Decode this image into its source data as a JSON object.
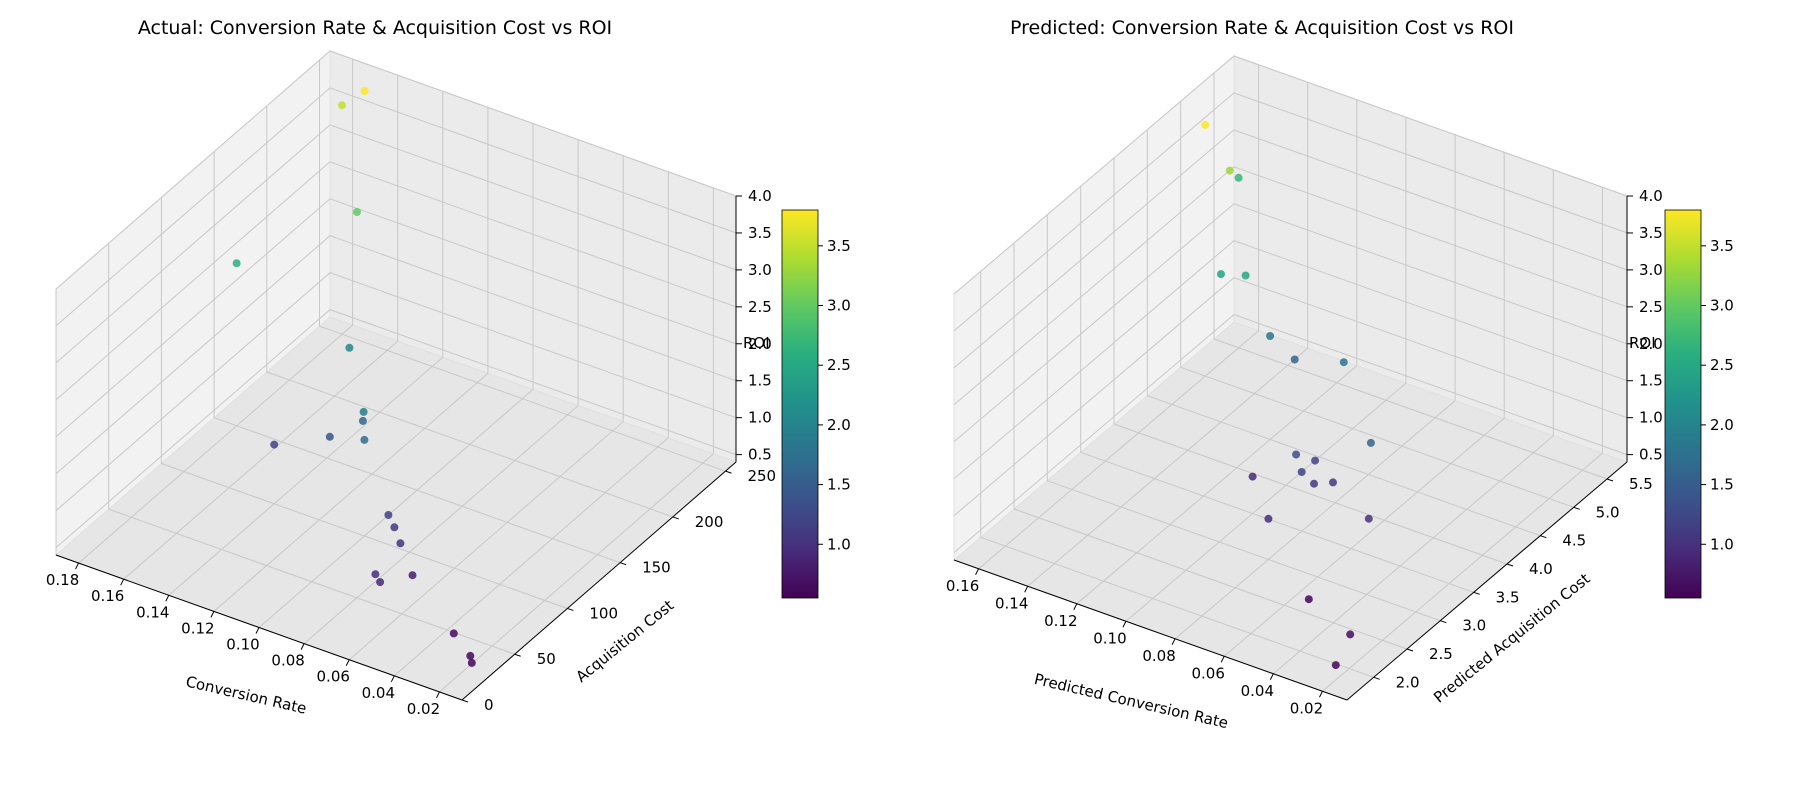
{
  "colorscale": {
    "name": "viridis",
    "min": 0.55,
    "max": 3.8,
    "ticks": [
      "1.0",
      "1.5",
      "2.0",
      "2.5",
      "3.0",
      "3.5"
    ],
    "tick_values": [
      1.0,
      1.5,
      2.0,
      2.5,
      3.0,
      3.5
    ]
  },
  "chart_data": [
    {
      "type": "scatter",
      "title": "Actual: Conversion Rate & Acquisition Cost vs ROI",
      "xlabel": "Conversion Rate",
      "ylabel": "Acquisition Cost",
      "zlabel": "ROI",
      "xlim": [
        0.01,
        0.19
      ],
      "ylim": [
        0,
        260
      ],
      "zlim": [
        0.4,
        4.0
      ],
      "x_ticks": [
        "0.02",
        "0.04",
        "0.06",
        "0.08",
        "0.10",
        "0.12",
        "0.14",
        "0.16",
        "0.18"
      ],
      "x_tick_values": [
        0.02,
        0.04,
        0.06,
        0.08,
        0.1,
        0.12,
        0.14,
        0.16,
        0.18
      ],
      "y_ticks": [
        "0",
        "50",
        "100",
        "150",
        "200",
        "250"
      ],
      "y_tick_values": [
        0,
        50,
        100,
        150,
        200,
        250
      ],
      "z_ticks": [
        "0.5",
        "1.0",
        "1.5",
        "2.0",
        "2.5",
        "3.0",
        "3.5",
        "4.0"
      ],
      "z_tick_values": [
        0.5,
        1.0,
        1.5,
        2.0,
        2.5,
        3.0,
        3.5,
        4.0
      ],
      "grid": true,
      "colorbar": "right",
      "points": [
        {
          "x": 0.015,
          "y": 20,
          "z": 0.6
        },
        {
          "x": 0.018,
          "y": 25,
          "z": 0.6
        },
        {
          "x": 0.03,
          "y": 35,
          "z": 0.65
        },
        {
          "x": 0.06,
          "y": 60,
          "z": 0.8
        },
        {
          "x": 0.065,
          "y": 40,
          "z": 0.9
        },
        {
          "x": 0.068,
          "y": 42,
          "z": 0.95
        },
        {
          "x": 0.07,
          "y": 70,
          "z": 1.0
        },
        {
          "x": 0.075,
          "y": 75,
          "z": 1.1
        },
        {
          "x": 0.08,
          "y": 80,
          "z": 1.15
        },
        {
          "x": 0.1,
          "y": 100,
          "z": 1.7
        },
        {
          "x": 0.105,
          "y": 110,
          "z": 1.9
        },
        {
          "x": 0.11,
          "y": 120,
          "z": 1.6
        },
        {
          "x": 0.13,
          "y": 150,
          "z": 2.0
        },
        {
          "x": 0.12,
          "y": 110,
          "z": 1.4
        },
        {
          "x": 0.14,
          "y": 100,
          "z": 1.2
        },
        {
          "x": 0.18,
          "y": 150,
          "z": 2.6
        },
        {
          "x": 0.15,
          "y": 200,
          "z": 3.0
        },
        {
          "x": 0.17,
          "y": 250,
          "z": 3.8
        },
        {
          "x": 0.18,
          "y": 250,
          "z": 3.5
        }
      ],
      "color_values": [
        0.6,
        0.6,
        0.65,
        0.8,
        0.9,
        0.95,
        1.0,
        1.1,
        1.15,
        1.7,
        1.9,
        1.6,
        2.0,
        1.4,
        1.2,
        2.6,
        3.0,
        3.8,
        3.5
      ]
    },
    {
      "type": "scatter",
      "title": "Predicted: Conversion Rate & Acquisition Cost vs ROI",
      "xlabel": "Predicted Conversion Rate",
      "ylabel": "Predicted Acquisition Cost",
      "zlabel": "ROI",
      "xlim": [
        0.01,
        0.17
      ],
      "ylim": [
        1.6,
        5.8
      ],
      "zlim": [
        0.4,
        4.0
      ],
      "x_ticks": [
        "0.02",
        "0.04",
        "0.06",
        "0.08",
        "0.10",
        "0.12",
        "0.14",
        "0.16"
      ],
      "x_tick_values": [
        0.02,
        0.04,
        0.06,
        0.08,
        0.1,
        0.12,
        0.14,
        0.16
      ],
      "y_ticks": [
        "2.0",
        "2.5",
        "3.0",
        "3.5",
        "4.0",
        "4.5",
        "5.0",
        "5.5"
      ],
      "y_tick_values": [
        2.0,
        2.5,
        3.0,
        3.5,
        4.0,
        4.5,
        5.0,
        5.5
      ],
      "z_ticks": [
        "0.5",
        "1.0",
        "1.5",
        "2.0",
        "2.5",
        "3.0",
        "3.5",
        "4.0"
      ],
      "z_tick_values": [
        0.5,
        1.0,
        1.5,
        2.0,
        2.5,
        3.0,
        3.5,
        4.0
      ],
      "grid": true,
      "colorbar": "right",
      "points": [
        {
          "x": 0.02,
          "y": 1.8,
          "z": 0.6
        },
        {
          "x": 0.025,
          "y": 2.2,
          "z": 0.65
        },
        {
          "x": 0.05,
          "y": 2.5,
          "z": 0.6
        },
        {
          "x": 0.05,
          "y": 3.4,
          "z": 1.0
        },
        {
          "x": 0.06,
          "y": 3.8,
          "z": 1.6
        },
        {
          "x": 0.07,
          "y": 3.6,
          "z": 1.1
        },
        {
          "x": 0.075,
          "y": 3.5,
          "z": 1.1
        },
        {
          "x": 0.08,
          "y": 3.5,
          "z": 1.2
        },
        {
          "x": 0.08,
          "y": 3.0,
          "z": 0.95
        },
        {
          "x": 0.085,
          "y": 3.6,
          "z": 1.3
        },
        {
          "x": 0.08,
          "y": 3.7,
          "z": 1.2
        },
        {
          "x": 0.1,
          "y": 3.5,
          "z": 0.9
        },
        {
          "x": 0.09,
          "y": 4.5,
          "z": 1.8
        },
        {
          "x": 0.11,
          "y": 4.5,
          "z": 1.6
        },
        {
          "x": 0.12,
          "y": 4.5,
          "z": 1.8
        },
        {
          "x": 0.13,
          "y": 4.5,
          "z": 2.5
        },
        {
          "x": 0.14,
          "y": 4.5,
          "z": 2.4
        },
        {
          "x": 0.15,
          "y": 5.0,
          "z": 3.3
        },
        {
          "x": 0.16,
          "y": 5.0,
          "z": 3.8
        },
        {
          "x": 0.16,
          "y": 5.5,
          "z": 2.7
        }
      ],
      "color_values": [
        0.6,
        0.65,
        0.6,
        1.0,
        1.6,
        1.1,
        1.1,
        1.2,
        0.95,
        1.3,
        1.2,
        0.9,
        1.8,
        1.6,
        1.8,
        2.5,
        2.4,
        3.3,
        3.8,
        2.7
      ]
    }
  ]
}
